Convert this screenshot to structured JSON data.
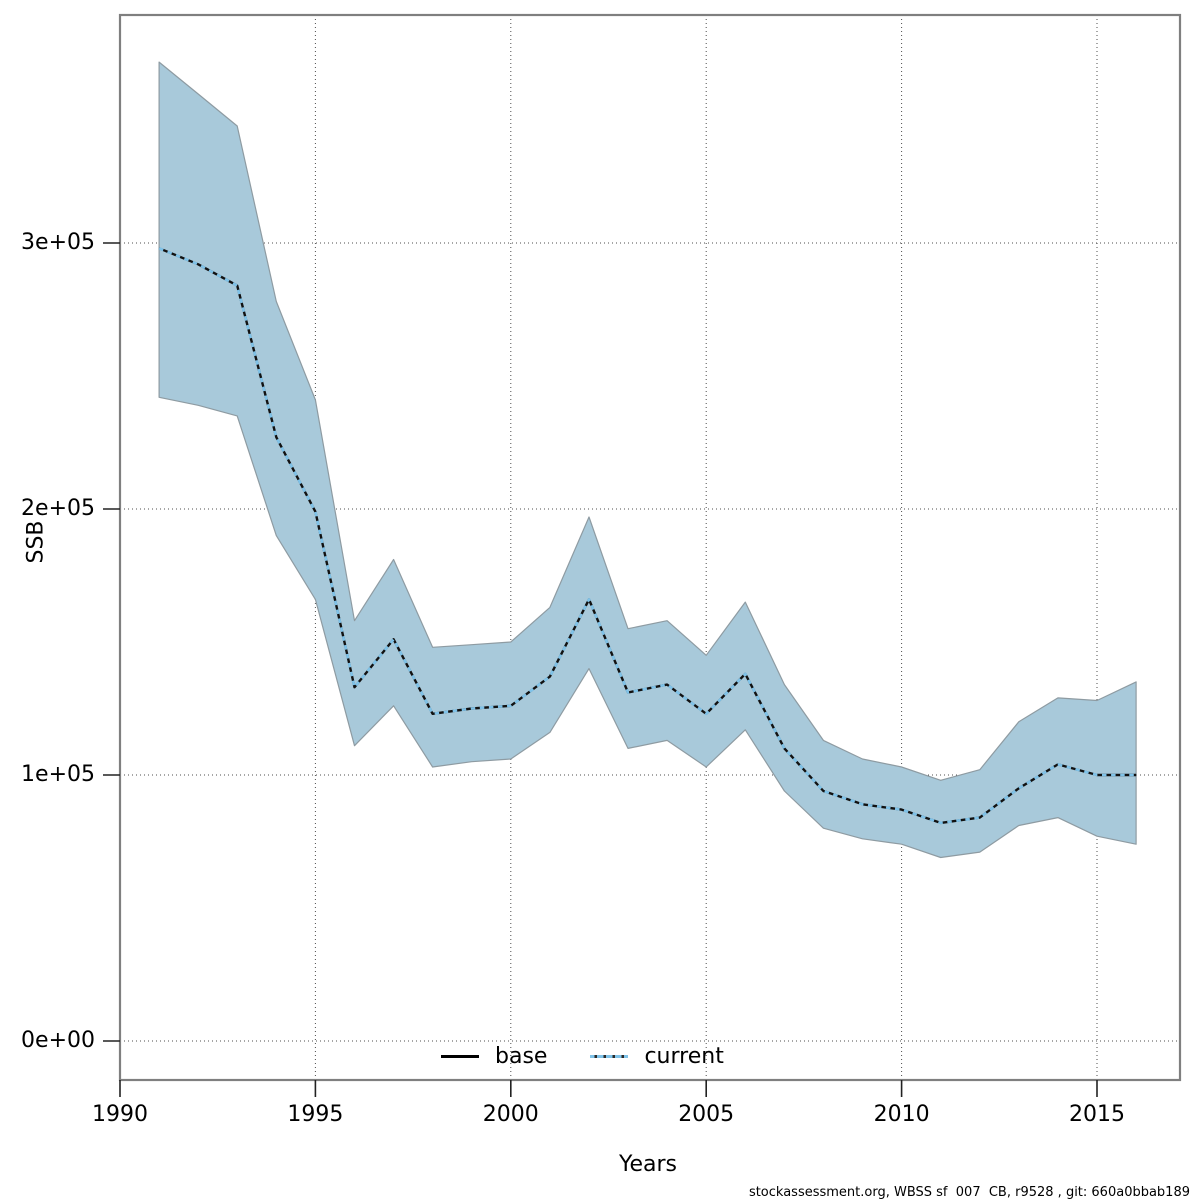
{
  "chart_data": {
    "type": "line",
    "title": "",
    "xlabel": "Years",
    "ylabel": "SSB",
    "x": [
      1991,
      1992,
      1993,
      1994,
      1995,
      1996,
      1997,
      1998,
      1999,
      2000,
      2001,
      2002,
      2003,
      2004,
      2005,
      2006,
      2007,
      2008,
      2009,
      2010,
      2011,
      2012,
      2013,
      2014,
      2015,
      2016
    ],
    "series": [
      {
        "name": "base",
        "line": "solid",
        "color": "#000000",
        "values": [
          298000,
          292000,
          284000,
          227000,
          199000,
          133000,
          151000,
          123000,
          125000,
          126000,
          137000,
          166000,
          131000,
          134000,
          123000,
          138000,
          110000,
          94000,
          89000,
          87000,
          82000,
          84000,
          95000,
          104000,
          100000,
          100000
        ]
      },
      {
        "name": "current",
        "line": "dotted",
        "color": "#7fc2e8",
        "values": [
          298000,
          292000,
          284000,
          227000,
          199000,
          133000,
          151000,
          123000,
          125000,
          126000,
          137000,
          166000,
          131000,
          134000,
          123000,
          138000,
          110000,
          94000,
          89000,
          87000,
          82000,
          84000,
          95000,
          104000,
          100000,
          100000
        ]
      }
    ],
    "band": {
      "name": "confidence-interval",
      "fill": "#a8c9da",
      "lower": [
        242000,
        239000,
        235000,
        190000,
        166000,
        111000,
        126000,
        103000,
        105000,
        106000,
        116000,
        140000,
        110000,
        113000,
        103000,
        117000,
        94000,
        80000,
        76000,
        74000,
        69000,
        71000,
        81000,
        84000,
        77000,
        74000
      ],
      "upper": [
        368000,
        356000,
        344000,
        278000,
        241000,
        158000,
        181000,
        148000,
        149000,
        150000,
        163000,
        197000,
        155000,
        158000,
        145000,
        165000,
        134000,
        113000,
        106000,
        103000,
        98000,
        102000,
        120000,
        129000,
        128000,
        135000
      ]
    },
    "x_ticks": [
      1990,
      1995,
      2000,
      2005,
      2010,
      2015
    ],
    "y_ticks": [
      {
        "label": "0e+00",
        "value": 0
      },
      {
        "label": "1e+05",
        "value": 100000
      },
      {
        "label": "2e+05",
        "value": 200000
      },
      {
        "label": "3e+05",
        "value": 300000
      }
    ],
    "xlim": [
      1990,
      2017.1
    ],
    "ylim": [
      0,
      385700
    ],
    "grid": true,
    "legend_position": "bottom-inside",
    "legend": [
      {
        "label": "base",
        "line": "solid",
        "color": "#000000"
      },
      {
        "label": "current",
        "line": "dotted",
        "color": "#7fc2e8"
      }
    ]
  },
  "footer": {
    "text": "stockassessment.org, WBSS sf  007  CB, r9528 , git: 660a0bbab189"
  },
  "colors": {
    "band_fill": "#a8c9da",
    "band_edge": "#8e9ba2",
    "grid": "#4d4d4d",
    "border": "#7f7f7f",
    "current_line": "#7fc2e8",
    "base_line": "#000000"
  }
}
